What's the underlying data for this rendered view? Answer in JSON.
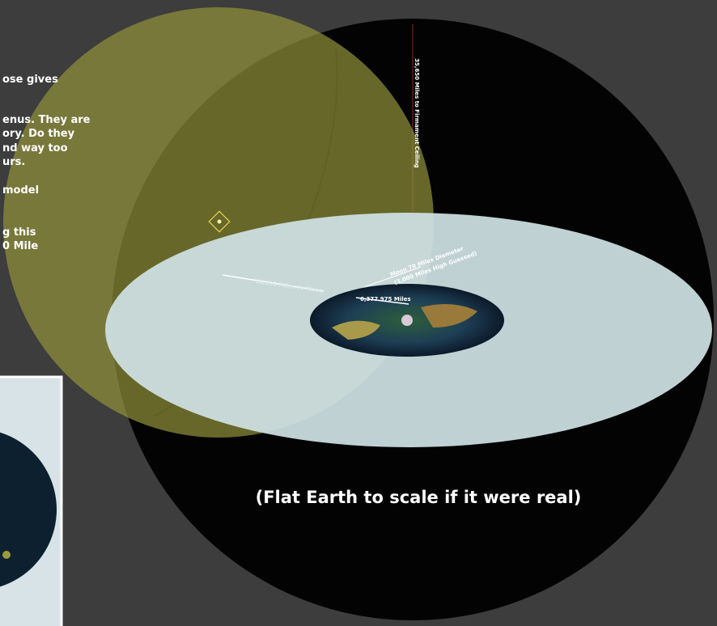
{
  "side_text": {
    "lines": [
      "ose gives",
      "enus. They are",
      "ory. Do they",
      "nd way too",
      "urs.",
      "model",
      "g this",
      "0 Mile"
    ]
  },
  "labels": {
    "firmament": "35,650 Miles to Firmament Ceiling",
    "moon_line1": "Moon 70 Miles Diameter",
    "moon_line2": "(3,000 Miles High Guessed)",
    "moon_distance": "18,000 Miles to Moon",
    "earth_diameter": "6,377.975 Miles"
  },
  "caption": "(Flat Earth to scale if it were real)"
}
